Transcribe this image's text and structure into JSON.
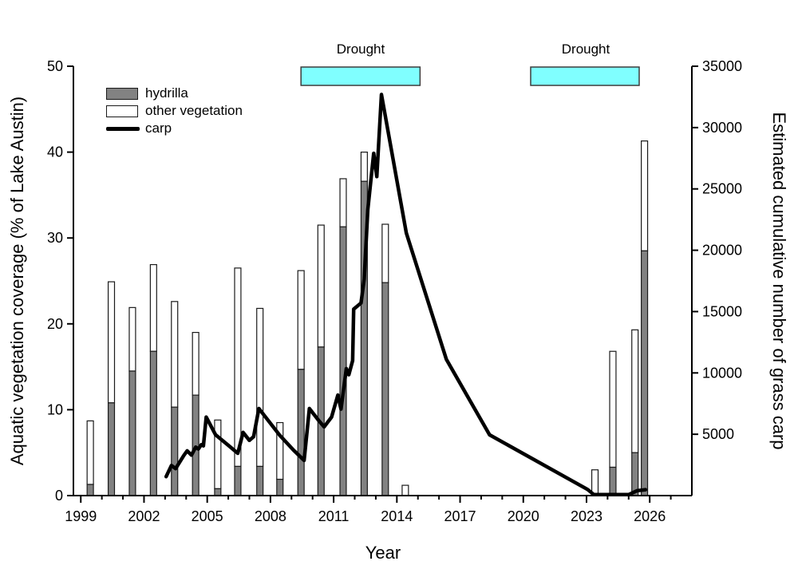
{
  "figure": {
    "background": "#ffffff",
    "hydrilla_fill": "#828282",
    "other_fill": "#ffffff",
    "bar_border": "#1a1a1a",
    "carp_color": "#000000",
    "drought_fill": "#80ffff",
    "drought_border": "#3c3c3c",
    "axis_color": "#000000"
  },
  "chart_data": {
    "type": "combo-stacked-bar-line",
    "title": "",
    "x_axis": {
      "label": "Year",
      "range": [
        1998.65,
        2028.0
      ],
      "major_ticks": [
        1999,
        2002,
        2005,
        2008,
        2011,
        2014,
        2017,
        2020,
        2023,
        2026
      ],
      "minor_tick_interval": 1
    },
    "y_left": {
      "label": "Aquatic vegetation coverage (% of Lake Austin)",
      "range": [
        0,
        50
      ],
      "major_ticks": [
        0,
        10,
        20,
        30,
        40,
        50
      ]
    },
    "y_right": {
      "label": "Estimated cumulative number of grass carp",
      "range": [
        0,
        35000
      ],
      "major_ticks": [
        5000,
        10000,
        15000,
        20000,
        25000,
        30000,
        35000
      ]
    },
    "legend": [
      {
        "label": "hydrilla",
        "type": "bar",
        "fill": "#828282"
      },
      {
        "label": "other vegetation",
        "type": "bar",
        "fill": "#ffffff"
      },
      {
        "label": "carp",
        "type": "line",
        "color": "#000000"
      }
    ],
    "droughts": [
      {
        "label": "Drought",
        "x_start": 2009.45,
        "x_end": 2015.1
      },
      {
        "label": "Drought",
        "x_start": 2020.35,
        "x_end": 2025.5
      }
    ],
    "bars": {
      "width_years": 0.3,
      "stack_order": [
        "hydrilla",
        "other"
      ],
      "points": [
        {
          "year": 1999.45,
          "hydrilla": 1.3,
          "other": 7.4
        },
        {
          "year": 2000.45,
          "hydrilla": 10.8,
          "other": 14.1
        },
        {
          "year": 2001.45,
          "hydrilla": 14.5,
          "other": 7.4
        },
        {
          "year": 2002.45,
          "hydrilla": 16.8,
          "other": 10.1
        },
        {
          "year": 2003.45,
          "hydrilla": 10.3,
          "other": 12.3
        },
        {
          "year": 2004.45,
          "hydrilla": 11.7,
          "other": 7.3
        },
        {
          "year": 2005.5,
          "hydrilla": 0.8,
          "other": 8.0
        },
        {
          "year": 2006.45,
          "hydrilla": 3.4,
          "other": 23.1
        },
        {
          "year": 2007.5,
          "hydrilla": 3.4,
          "other": 18.4
        },
        {
          "year": 2008.45,
          "hydrilla": 1.9,
          "other": 6.6
        },
        {
          "year": 2009.45,
          "hydrilla": 14.7,
          "other": 11.5
        },
        {
          "year": 2010.4,
          "hydrilla": 17.3,
          "other": 14.2
        },
        {
          "year": 2011.45,
          "hydrilla": 31.3,
          "other": 5.6
        },
        {
          "year": 2012.45,
          "hydrilla": 36.6,
          "other": 3.4
        },
        {
          "year": 2013.45,
          "hydrilla": 24.8,
          "other": 6.8
        },
        {
          "year": 2014.4,
          "hydrilla": 0,
          "other": 1.2
        },
        {
          "year": 2023.4,
          "hydrilla": 0,
          "other": 3.0
        },
        {
          "year": 2024.25,
          "hydrilla": 3.3,
          "other": 13.5
        },
        {
          "year": 2025.3,
          "hydrilla": 5.0,
          "other": 14.3
        },
        {
          "year": 2025.75,
          "hydrilla": 28.5,
          "other": 12.8
        }
      ]
    },
    "carp_line": {
      "name": "carp",
      "axis": "right",
      "points": [
        [
          2003.05,
          1550
        ],
        [
          2003.3,
          2450
        ],
        [
          2003.5,
          2200
        ],
        [
          2003.9,
          3300
        ],
        [
          2004.05,
          3650
        ],
        [
          2004.25,
          3300
        ],
        [
          2004.45,
          3950
        ],
        [
          2004.58,
          3800
        ],
        [
          2004.72,
          4150
        ],
        [
          2004.82,
          4050
        ],
        [
          2004.95,
          6400
        ],
        [
          2005.4,
          4950
        ],
        [
          2006.0,
          4100
        ],
        [
          2006.45,
          3450
        ],
        [
          2006.7,
          5150
        ],
        [
          2007.0,
          4500
        ],
        [
          2007.2,
          4800
        ],
        [
          2007.45,
          7100
        ],
        [
          2008.45,
          4900
        ],
        [
          2009.1,
          3700
        ],
        [
          2009.6,
          2870
        ],
        [
          2009.85,
          7100
        ],
        [
          2010.3,
          6100
        ],
        [
          2010.55,
          5600
        ],
        [
          2010.9,
          6400
        ],
        [
          2011.2,
          8200
        ],
        [
          2011.35,
          7050
        ],
        [
          2011.6,
          10350
        ],
        [
          2011.72,
          9850
        ],
        [
          2011.9,
          11000
        ],
        [
          2011.95,
          15200
        ],
        [
          2012.3,
          15700
        ],
        [
          2012.45,
          17650
        ],
        [
          2012.62,
          23300
        ],
        [
          2012.9,
          27900
        ],
        [
          2013.05,
          26000
        ],
        [
          2013.27,
          32700
        ],
        [
          2014.45,
          21400
        ],
        [
          2016.35,
          11100
        ],
        [
          2018.4,
          4950
        ],
        [
          2023.05,
          500
        ],
        [
          2023.35,
          80
        ],
        [
          2025.0,
          80
        ],
        [
          2025.4,
          400
        ],
        [
          2025.8,
          480
        ]
      ]
    }
  }
}
